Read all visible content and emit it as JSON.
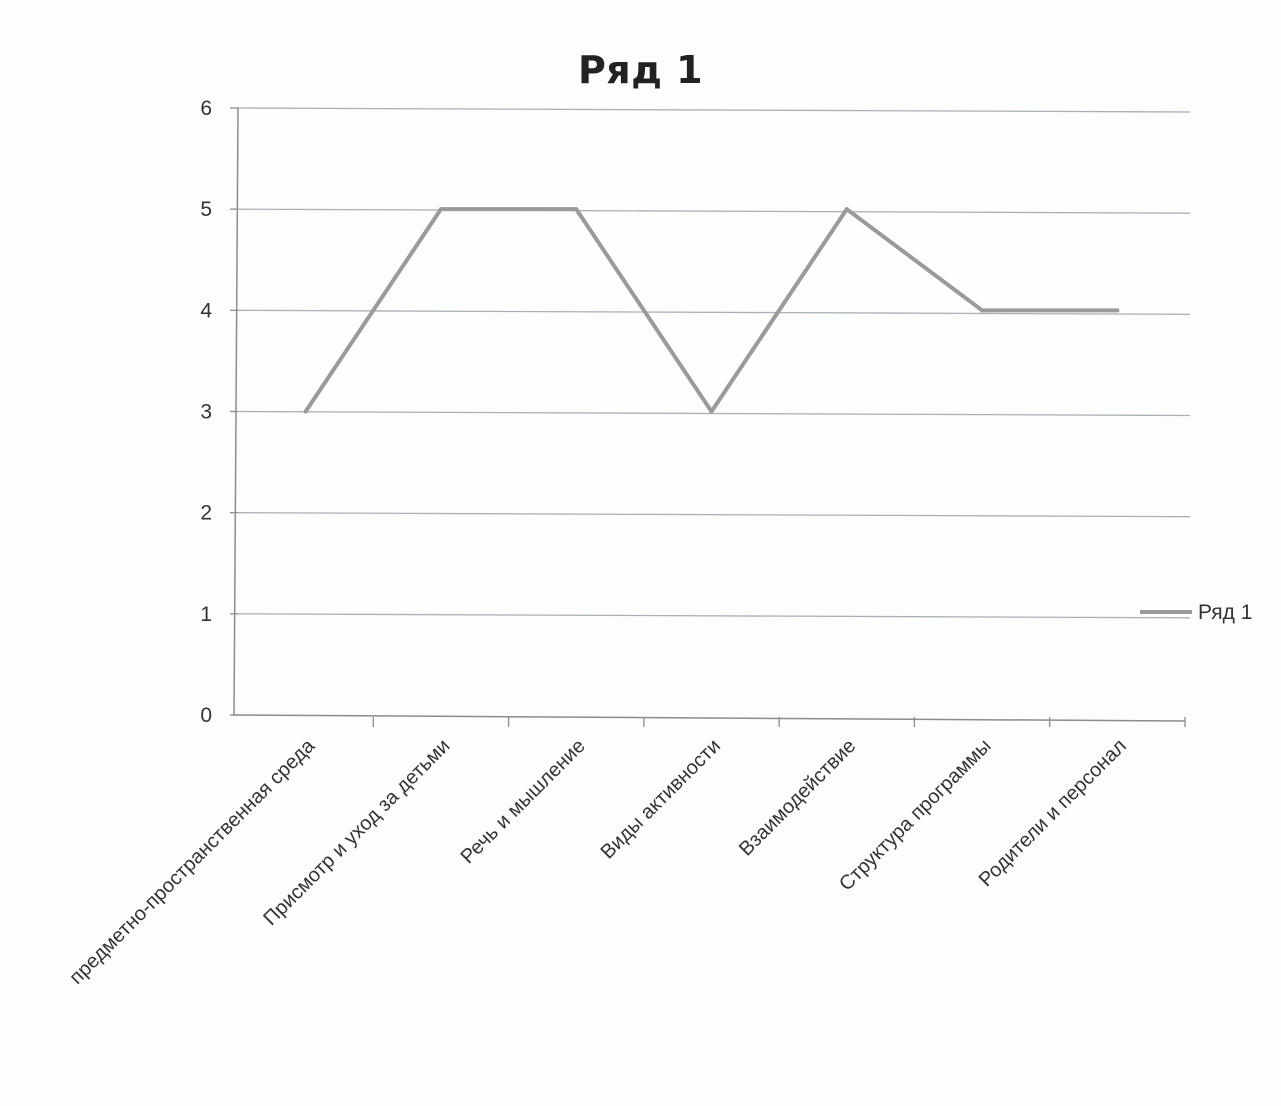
{
  "chart_data": {
    "type": "line",
    "title": "Ряд 1",
    "xlabel": "",
    "ylabel": "",
    "categories": [
      "предметно-пространственная среда",
      "Присмотр и уход за детьми",
      "Речь и мышление",
      "Виды активности",
      "Взаимодействие",
      "Структура программы",
      "Родители и персонал"
    ],
    "series": [
      {
        "name": "Ряд 1",
        "values": [
          3,
          5,
          5,
          3,
          5,
          4,
          4
        ]
      }
    ],
    "ylim": [
      0,
      6
    ],
    "yticks": [
      0,
      1,
      2,
      3,
      4,
      5,
      6
    ],
    "grid": true,
    "legend": "right",
    "colors": {
      "line": "#9a9a9a",
      "grid": "#a9b0bb",
      "axis": "#8c8c8c"
    }
  }
}
